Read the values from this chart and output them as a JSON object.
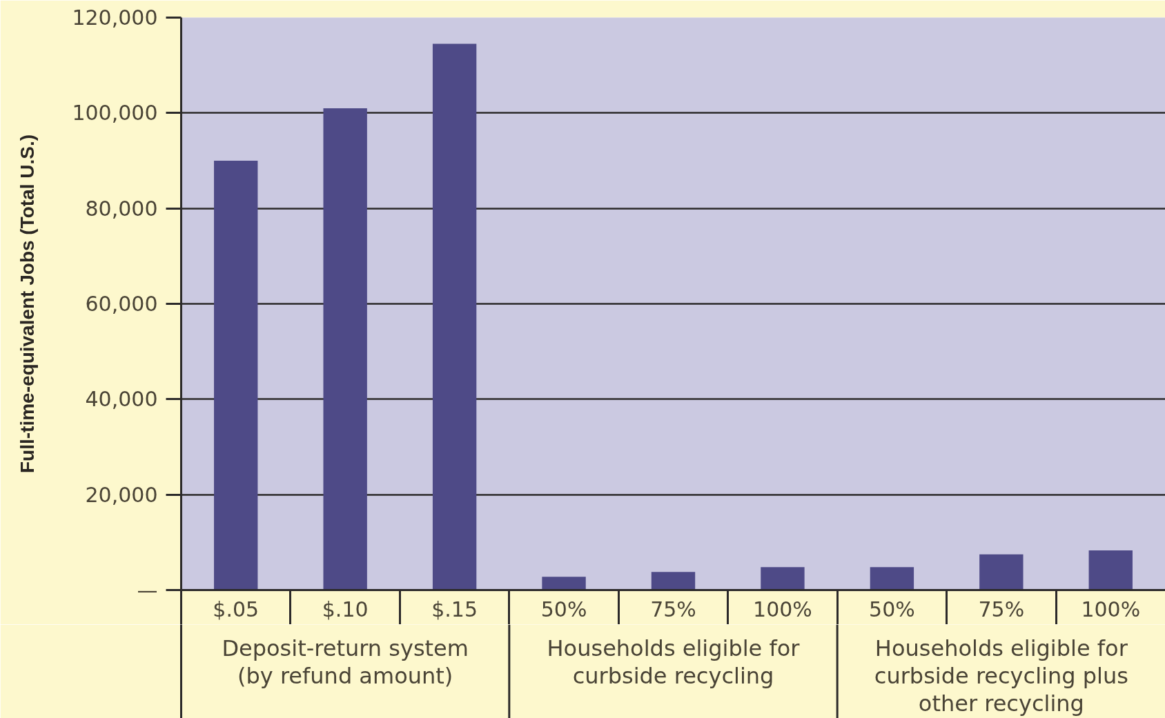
{
  "chart_data": {
    "type": "bar",
    "ylabel": "Full-time-equivalent Jobs (Total U.S.)",
    "categories": [
      "$.05",
      "$.10",
      "$.15",
      "50%",
      "75%",
      "100%",
      "50%",
      "75%",
      "100%"
    ],
    "values": [
      90000,
      101000,
      114500,
      2800,
      3800,
      4800,
      4800,
      7500,
      8300
    ],
    "color": "#4e4a87",
    "ylim": [
      0,
      120000
    ],
    "yticks": [
      {
        "value": 0,
        "label": "—"
      },
      {
        "value": 20000,
        "label": "20,000"
      },
      {
        "value": 40000,
        "label": "40,000"
      },
      {
        "value": 60000,
        "label": "60,000"
      },
      {
        "value": 80000,
        "label": "80,000"
      },
      {
        "value": 100000,
        "label": "100,000"
      },
      {
        "value": 120000,
        "label": "120,000"
      }
    ],
    "grid": "y",
    "annotations": [
      "Deposit-return system (by refund amount)",
      "Households eligible for curbside recycling",
      "Households eligible for curbside recycling plus other recycling"
    ]
  }
}
